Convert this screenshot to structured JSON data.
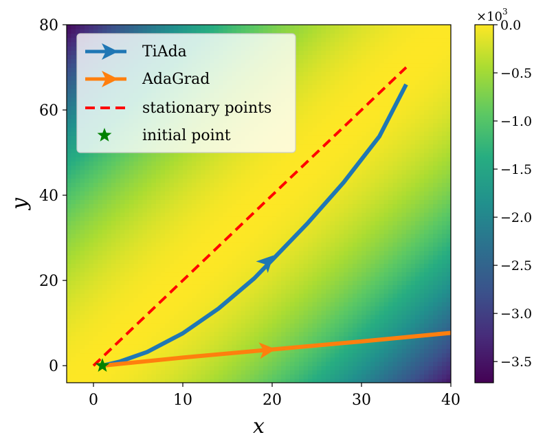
{
  "chart_data": {
    "type": "heatmap",
    "title": "",
    "xlabel": "x",
    "ylabel": "y",
    "xlim": [
      -3,
      40
    ],
    "ylim": [
      -4,
      80
    ],
    "x_ticks": [
      0,
      10,
      20,
      30,
      40
    ],
    "x_tick_labels": [
      "0",
      "10",
      "20",
      "30",
      "40"
    ],
    "y_ticks": [
      0,
      20,
      40,
      60,
      80
    ],
    "y_tick_labels": [
      "0",
      "20",
      "40",
      "60",
      "80"
    ],
    "heatmap": {
      "description_function": "f = -(y - 2x)^2 scaled",
      "colormap": "viridis",
      "range": [
        -3.7,
        0.0
      ]
    },
    "colorbar": {
      "multiplier_base": "×10",
      "multiplier_exp": "3",
      "ticks": [
        0.0,
        -0.5,
        -1.0,
        -1.5,
        -2.0,
        -2.5,
        -3.0,
        -3.5
      ],
      "tick_labels": [
        "0.0",
        "−0.5",
        "−1.0",
        "−1.5",
        "−2.0",
        "−2.5",
        "−3.0",
        "−3.5"
      ],
      "range": [
        -3.72,
        0.0
      ]
    },
    "series": [
      {
        "name": "TiAda",
        "kind": "line-arrow",
        "color": "#1f77b4",
        "x": [
          1,
          3,
          6,
          10,
          14,
          18,
          20,
          24,
          28,
          32,
          35
        ],
        "y": [
          0,
          1.0,
          3.2,
          7.6,
          13.4,
          20.5,
          24.8,
          33.5,
          43.0,
          53.8,
          66.0
        ],
        "arrow_at": [
          19.5,
          24.5
        ]
      },
      {
        "name": "AdaGrad",
        "kind": "line-arrow",
        "color": "#ff7f0e",
        "x": [
          1,
          10,
          20,
          30,
          40
        ],
        "y": [
          0,
          1.9,
          3.8,
          5.7,
          7.7
        ],
        "arrow_at": [
          19.5,
          3.7
        ]
      },
      {
        "name": "stationary points",
        "kind": "dashed-line",
        "color": "#ff0000",
        "x": [
          0,
          35
        ],
        "y": [
          0,
          70
        ]
      },
      {
        "name": "initial point",
        "kind": "star",
        "color": "#008000",
        "x": [
          1
        ],
        "y": [
          0
        ]
      }
    ],
    "legend": {
      "position": "top-left",
      "entries": [
        "TiAda",
        "AdaGrad",
        "stationary points",
        "initial point"
      ]
    }
  }
}
